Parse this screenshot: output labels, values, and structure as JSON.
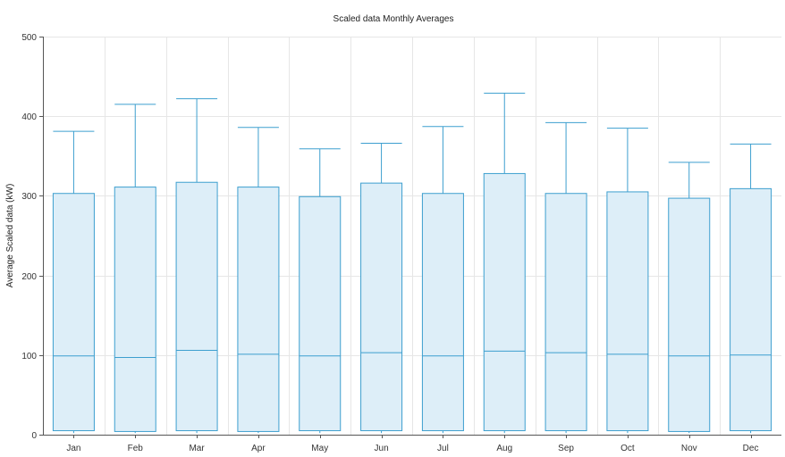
{
  "colors": {
    "box_fill": "#ddeef8",
    "box_stroke": "#3d9fcf",
    "grid": "#e6e6e6",
    "axis": "#555555"
  },
  "chart_data": {
    "type": "boxplot",
    "title": "Scaled data Monthly Averages",
    "xlabel": "",
    "ylabel": "Average Scaled data (kW)",
    "ylim": [
      0,
      500
    ],
    "yticks": [
      0,
      100,
      200,
      300,
      400,
      500
    ],
    "grid": true,
    "legend": "none",
    "categories": [
      "Jan",
      "Feb",
      "Mar",
      "Apr",
      "May",
      "Jun",
      "Jul",
      "Aug",
      "Sep",
      "Oct",
      "Nov",
      "Dec"
    ],
    "boxes": [
      {
        "min": 2,
        "q1": 5,
        "median": 99,
        "q3": 303,
        "max": 381
      },
      {
        "min": 2,
        "q1": 4,
        "median": 97,
        "q3": 311,
        "max": 415
      },
      {
        "min": 2,
        "q1": 5,
        "median": 106,
        "q3": 317,
        "max": 422
      },
      {
        "min": 2,
        "q1": 4,
        "median": 101,
        "q3": 311,
        "max": 386
      },
      {
        "min": 2,
        "q1": 5,
        "median": 99,
        "q3": 299,
        "max": 359
      },
      {
        "min": 2,
        "q1": 5,
        "median": 103,
        "q3": 316,
        "max": 366
      },
      {
        "min": 2,
        "q1": 5,
        "median": 99,
        "q3": 303,
        "max": 387
      },
      {
        "min": 2,
        "q1": 5,
        "median": 105,
        "q3": 328,
        "max": 429
      },
      {
        "min": 2,
        "q1": 5,
        "median": 103,
        "q3": 303,
        "max": 392
      },
      {
        "min": 2,
        "q1": 5,
        "median": 101,
        "q3": 305,
        "max": 385
      },
      {
        "min": 2,
        "q1": 4,
        "median": 99,
        "q3": 297,
        "max": 342
      },
      {
        "min": 2,
        "q1": 5,
        "median": 100,
        "q3": 309,
        "max": 365
      }
    ]
  }
}
